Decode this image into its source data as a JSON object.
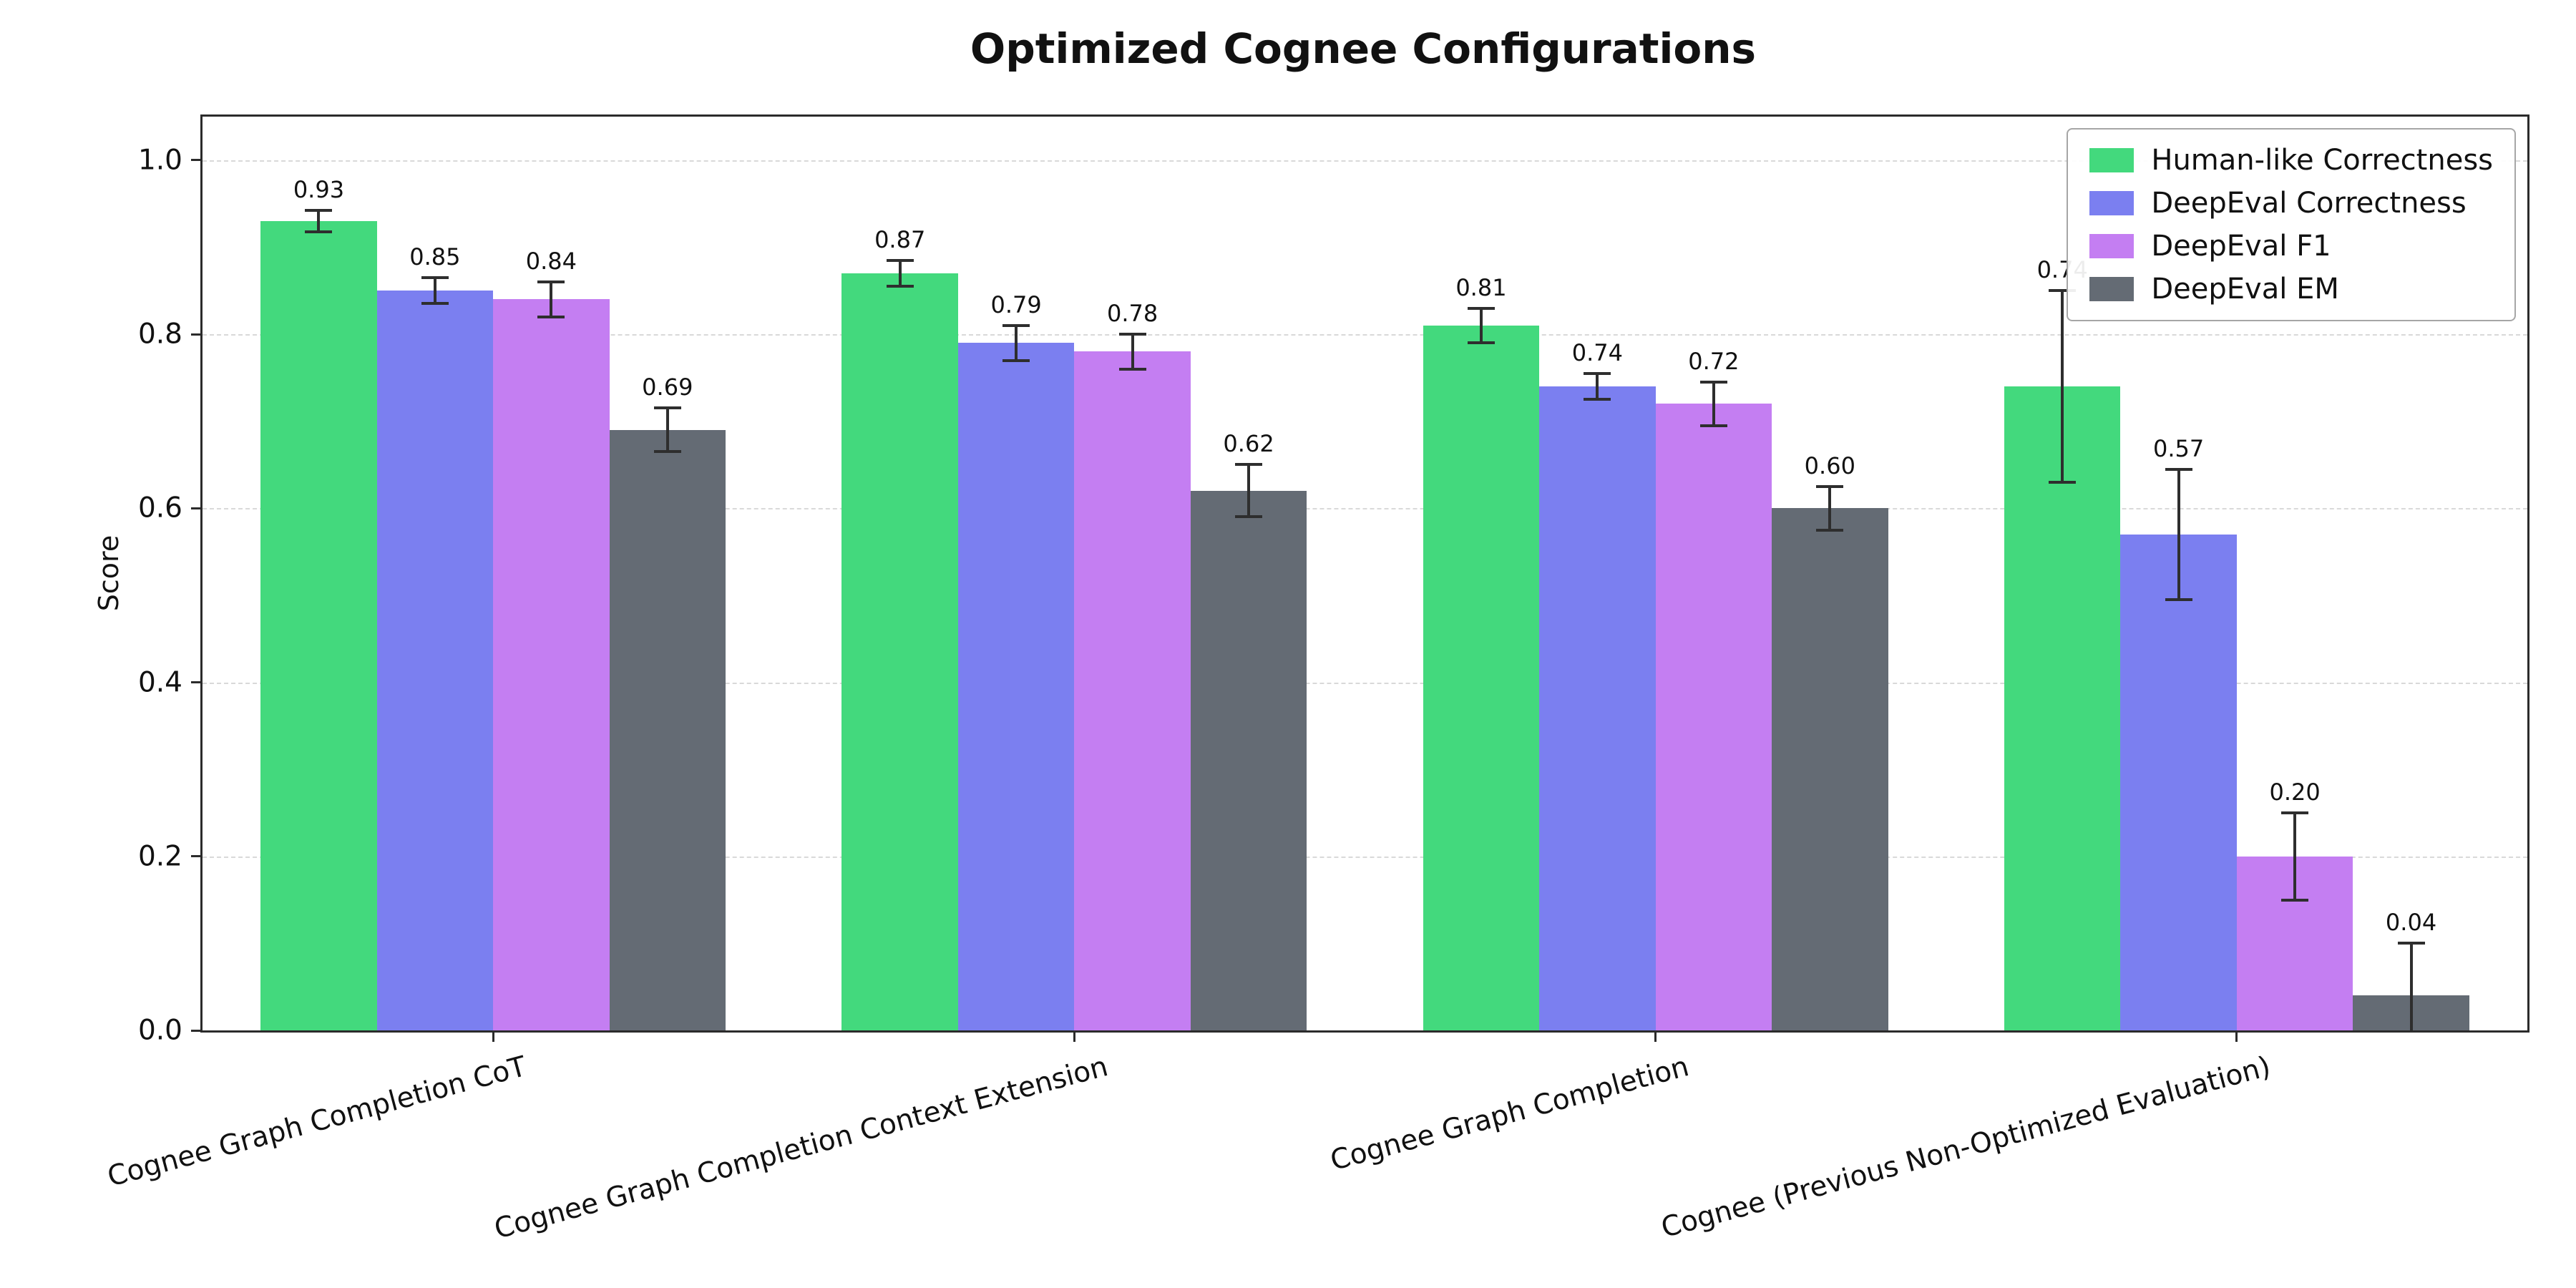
{
  "figure": {
    "background": "#ffffff"
  },
  "chart_data": {
    "type": "bar",
    "title": "Optimized Cognee Configurations",
    "xlabel": "",
    "ylabel": "Score",
    "ylim": [
      0,
      1.05
    ],
    "yticks": [
      0.0,
      0.2,
      0.4,
      0.6,
      0.8,
      1.0
    ],
    "grid": "horizontal dashed",
    "legend_position": "upper right",
    "bar_value_labels": true,
    "error_bars": true,
    "error_color": "#2e2e2e",
    "categories": [
      "Cognee Graph Completion CoT",
      "Cognee Graph Completion Context Extension",
      "Cognee Graph Completion",
      "Cognee (Previous Non-Optimized Evaluation)"
    ],
    "series": [
      {
        "name": "Human-like Correctness",
        "color": "#43d97d",
        "values": [
          0.93,
          0.87,
          0.81,
          0.74
        ],
        "errors": [
          0.012,
          0.015,
          0.02,
          0.11
        ]
      },
      {
        "name": "DeepEval Correctness",
        "color": "#7b7ff0",
        "values": [
          0.85,
          0.79,
          0.74,
          0.57
        ],
        "errors": [
          0.015,
          0.02,
          0.015,
          0.075
        ]
      },
      {
        "name": "DeepEval F1",
        "color": "#c47ef2",
        "values": [
          0.84,
          0.78,
          0.72,
          0.2
        ],
        "errors": [
          0.02,
          0.02,
          0.025,
          0.05
        ]
      },
      {
        "name": "DeepEval EM",
        "color": "#646b74",
        "values": [
          0.69,
          0.62,
          0.6,
          0.04
        ],
        "errors": [
          0.025,
          0.03,
          0.025,
          0.06
        ]
      }
    ]
  }
}
